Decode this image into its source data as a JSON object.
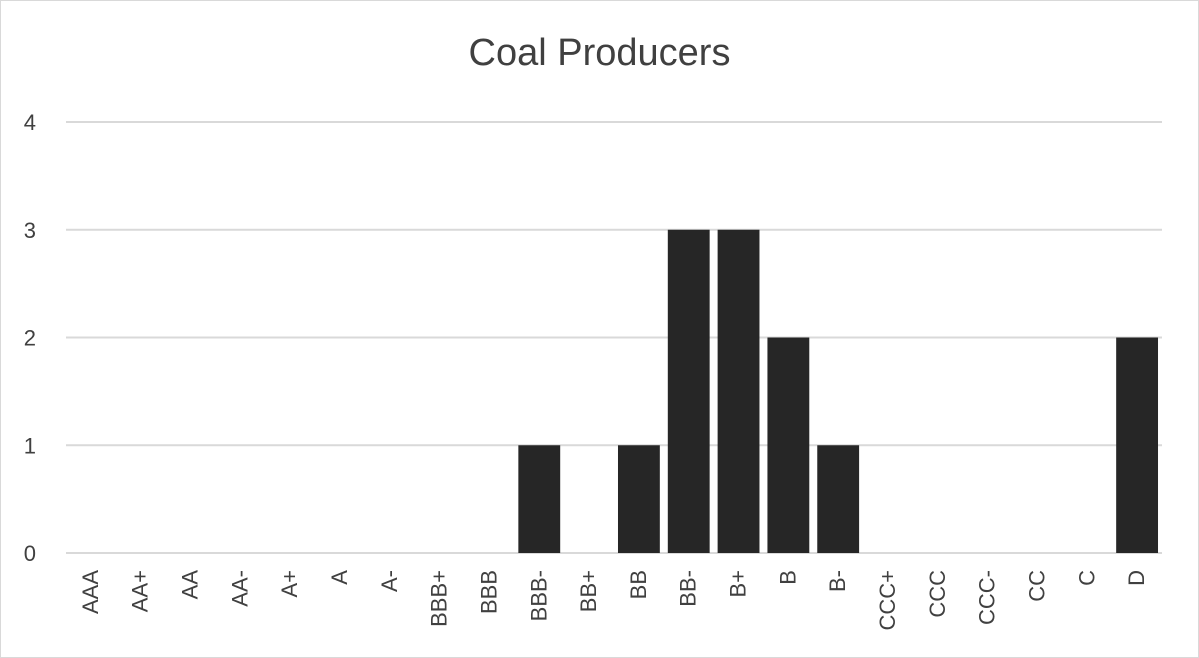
{
  "chart_data": {
    "type": "bar",
    "title": "Coal Producers",
    "xlabel": "",
    "ylabel": "",
    "categories": [
      "AAA",
      "AA+",
      "AA",
      "AA-",
      "A+",
      "A",
      "A-",
      "BBB+",
      "BBB",
      "BBB-",
      "BB+",
      "BB",
      "BB-",
      "B+",
      "B",
      "B-",
      "CCC+",
      "CCC",
      "CCC-",
      "CC",
      "C",
      "D"
    ],
    "values": [
      0,
      0,
      0,
      0,
      0,
      0,
      0,
      0,
      0,
      1,
      0,
      1,
      3,
      3,
      2,
      1,
      0,
      0,
      0,
      0,
      0,
      2
    ],
    "ylim": [
      0,
      4
    ],
    "yticks": [
      0,
      1,
      2,
      3,
      4
    ],
    "grid": true,
    "legend": "none",
    "colors": {
      "bar": "#262626",
      "grid": "#d9d9d9",
      "text": "#404040"
    }
  }
}
